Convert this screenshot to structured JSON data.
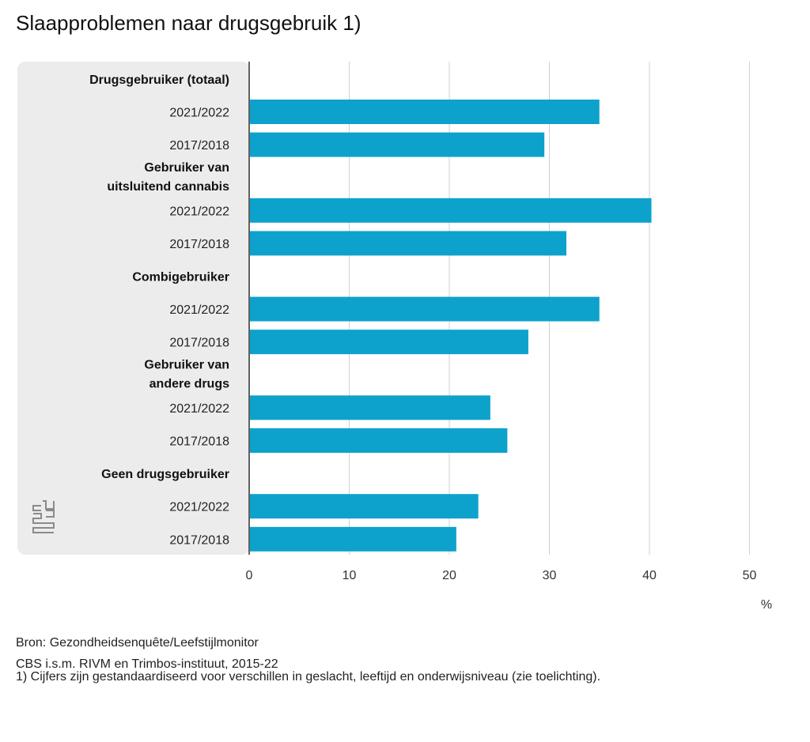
{
  "title": "Slaapproblemen naar drugsgebruik 1)",
  "chart_data": {
    "type": "bar",
    "orientation": "horizontal",
    "title": "Slaapproblemen naar drugsgebruik 1)",
    "xlabel": "%",
    "xlim": [
      0,
      50
    ],
    "xticks": [
      "0",
      "10",
      "20",
      "30",
      "40",
      "50"
    ],
    "grid": true,
    "color": "#0da2cc",
    "groups": [
      {
        "label": "Drugsgebruiker (totaal)",
        "bars": [
          {
            "label": "2021/2022",
            "value": 35
          },
          {
            "label": "2017/2018",
            "value": 29.5
          }
        ]
      },
      {
        "label": "Gebruiker van uitsluitend cannabis",
        "lines": [
          "Gebruiker van",
          "uitsluitend cannabis"
        ],
        "bars": [
          {
            "label": "2021/2022",
            "value": 40.2
          },
          {
            "label": "2017/2018",
            "value": 31.7
          }
        ]
      },
      {
        "label": "Combigebruiker",
        "bars": [
          {
            "label": "2021/2022",
            "value": 35
          },
          {
            "label": "2017/2018",
            "value": 27.9
          }
        ]
      },
      {
        "label": "Gebruiker van andere drugs",
        "lines": [
          "Gebruiker van",
          "andere drugs"
        ],
        "bars": [
          {
            "label": "2021/2022",
            "value": 24.1
          },
          {
            "label": "2017/2018",
            "value": 25.8
          }
        ]
      },
      {
        "label": "Geen drugsgebruiker",
        "bars": [
          {
            "label": "2021/2022",
            "value": 22.9
          },
          {
            "label": "2017/2018",
            "value": 20.7
          }
        ]
      }
    ]
  },
  "source": {
    "line1": "Bron: Gezondheidsenquête/Leefstijlmonitor",
    "line2": "CBS i.s.m. RIVM en Trimbos-instituut, 2015-22"
  },
  "footnote": "1) Cijfers zijn gestandaardiseerd voor verschillen in geslacht, leeftijd en onderwijsniveau (zie toelichting).",
  "logo": {
    "icon": "cbs-logo-icon"
  }
}
